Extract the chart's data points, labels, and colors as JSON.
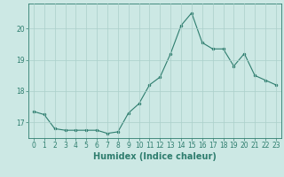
{
  "xlabel": "Humidex (Indice chaleur)",
  "x": [
    0,
    1,
    2,
    3,
    4,
    5,
    6,
    7,
    8,
    9,
    10,
    11,
    12,
    13,
    14,
    15,
    16,
    17,
    18,
    19,
    20,
    21,
    22,
    23
  ],
  "y": [
    17.35,
    17.25,
    16.8,
    16.75,
    16.75,
    16.75,
    16.75,
    16.65,
    16.7,
    17.3,
    17.6,
    18.2,
    18.45,
    19.2,
    20.1,
    20.5,
    19.55,
    19.35,
    19.35,
    18.8,
    19.2,
    18.5,
    18.35,
    18.2
  ],
  "line_color": "#2e7d6e",
  "marker": "o",
  "marker_size": 2.0,
  "bg_color": "#cce8e4",
  "grid_color": "#aacfca",
  "ylim": [
    16.5,
    20.8
  ],
  "yticks": [
    17,
    18,
    19,
    20
  ],
  "xlim": [
    -0.5,
    23.5
  ],
  "tick_fontsize": 5.5,
  "label_fontsize": 7.0
}
